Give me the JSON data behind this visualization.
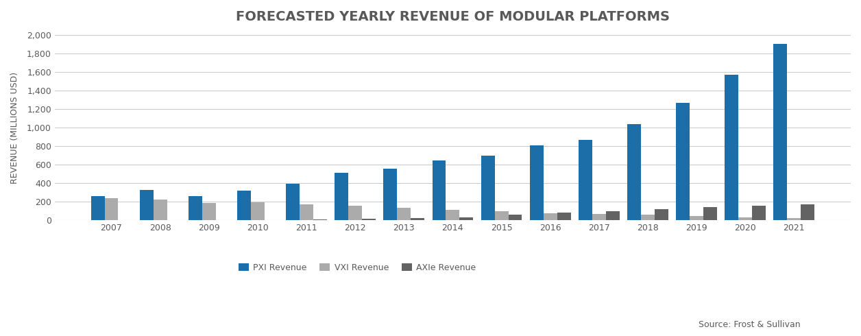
{
  "title": "FORECASTED YEARLY REVENUE OF MODULAR PLATFORMS",
  "ylabel": "REVENUE (MILLIONS USD)",
  "source": "Source: Frost & Sullivan",
  "years": [
    2007,
    2008,
    2009,
    2010,
    2011,
    2012,
    2013,
    2014,
    2015,
    2016,
    2017,
    2018,
    2019,
    2020,
    2021
  ],
  "pxi": [
    260,
    325,
    260,
    320,
    395,
    510,
    555,
    645,
    700,
    810,
    870,
    1040,
    1270,
    1570,
    1900
  ],
  "vxi": [
    240,
    225,
    190,
    195,
    175,
    155,
    135,
    110,
    95,
    75,
    70,
    65,
    45,
    35,
    25
  ],
  "axle": [
    0,
    0,
    0,
    0,
    10,
    15,
    25,
    35,
    60,
    80,
    100,
    120,
    145,
    160,
    175
  ],
  "pxi_color": "#1B6EA8",
  "vxi_color": "#ABABAB",
  "axle_color": "#636363",
  "bg_color": "#FFFFFF",
  "grid_color": "#CCCCCC",
  "title_color": "#595959",
  "legend_labels": [
    "PXI Revenue",
    "VXI Revenue",
    "AXIe Revenue"
  ],
  "ylim": [
    0,
    2000
  ],
  "yticks": [
    0,
    200,
    400,
    600,
    800,
    1000,
    1200,
    1400,
    1600,
    1800,
    2000
  ],
  "bar_width": 0.28,
  "title_fontsize": 14,
  "axis_fontsize": 9,
  "tick_fontsize": 9,
  "source_fontsize": 9
}
